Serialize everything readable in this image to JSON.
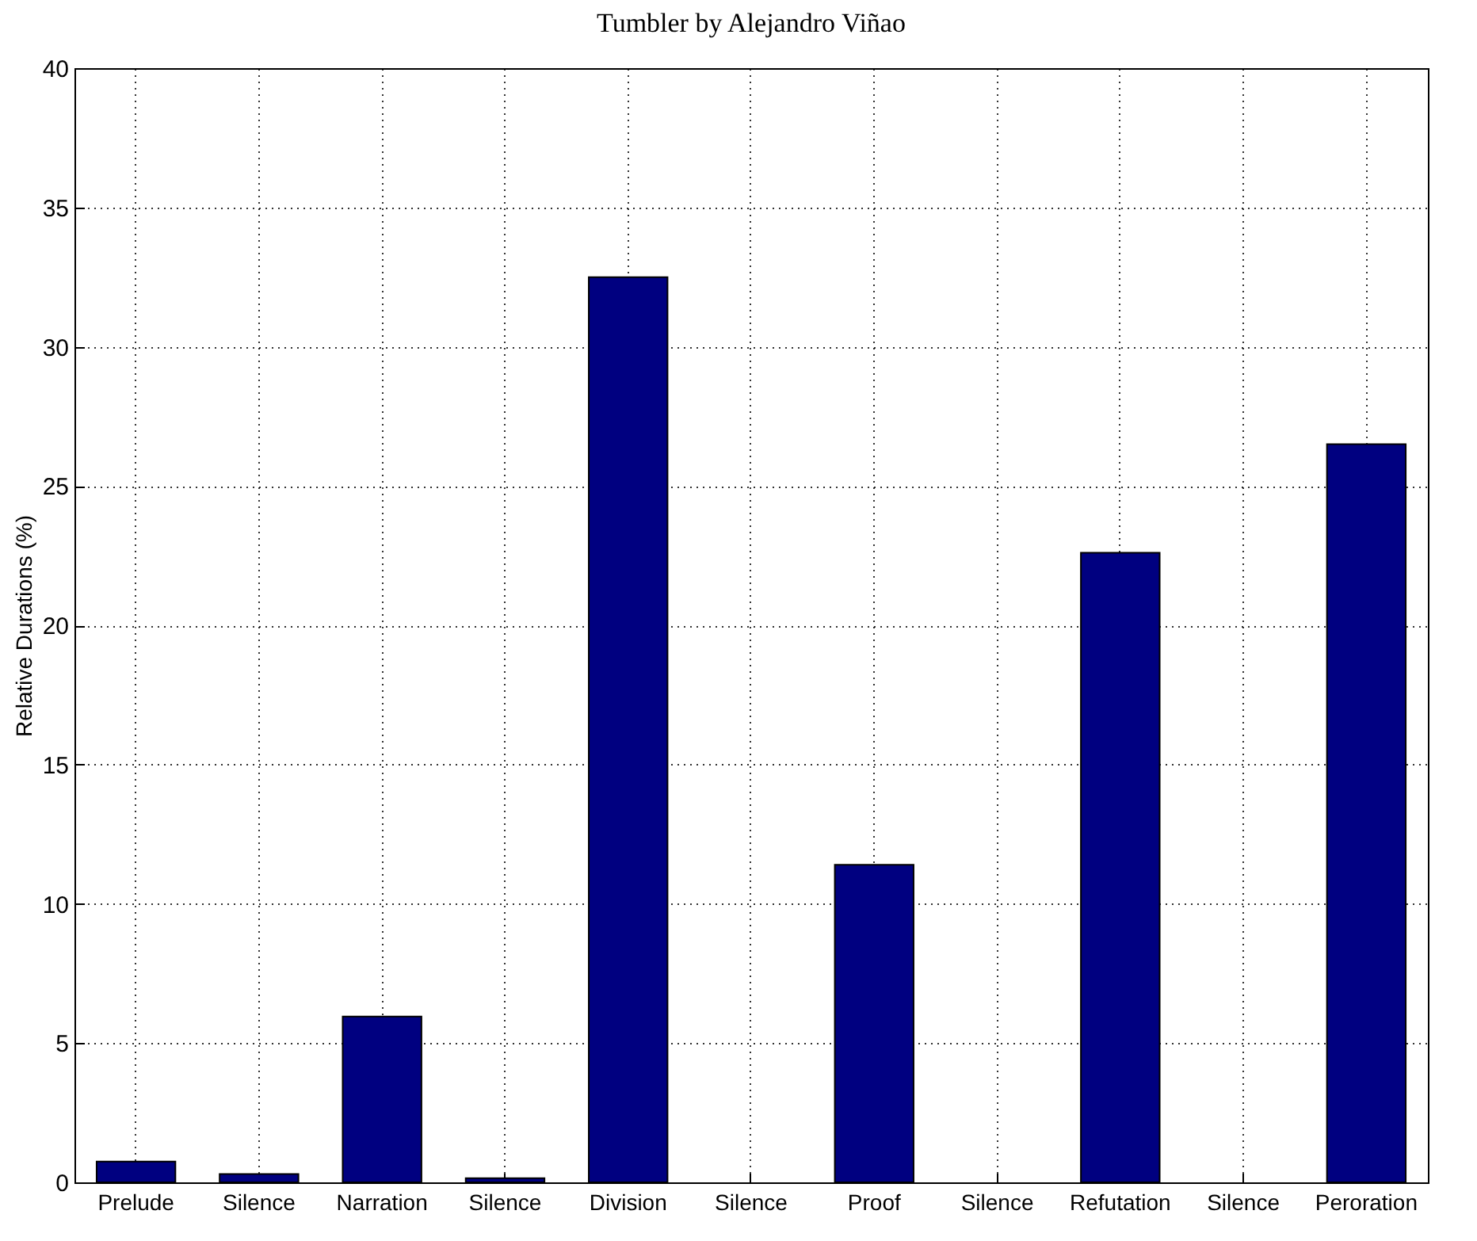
{
  "chart_data": {
    "type": "bar",
    "title": "Tumbler by Alejandro Viñao",
    "ylabel": "Relative Durations (%)",
    "categories": [
      "Prelude",
      "Silence",
      "Narration",
      "Silence",
      "Division",
      "Silence",
      "Proof",
      "Silence",
      "Refutation",
      "Silence",
      "Peroration"
    ],
    "values": [
      0.75,
      0.3,
      5.95,
      0.15,
      32.5,
      0,
      11.4,
      0,
      22.6,
      0,
      26.5
    ],
    "color": "#000080",
    "ylim": [
      0,
      40
    ],
    "yticks": [
      0,
      5,
      10,
      15,
      20,
      25,
      30,
      35,
      40
    ],
    "grid": true,
    "line_style": "dotted"
  }
}
